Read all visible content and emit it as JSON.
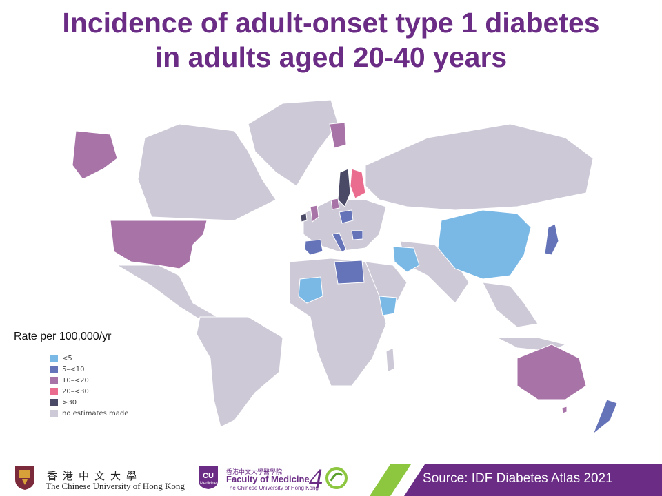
{
  "title": {
    "line1": "Incidence of adult-onset type 1 diabetes",
    "line2": "in adults aged 20-40 years"
  },
  "legend": {
    "title": "Rate per 100,000/yr",
    "items": [
      {
        "label": "<5",
        "color": "#7ab8e6"
      },
      {
        "label": "5–<10",
        "color": "#6573b8"
      },
      {
        "label": "10–<20",
        "color": "#a874a8"
      },
      {
        "label": "20–<30",
        "color": "#ea6d8f"
      },
      {
        "label": ">30",
        "color": "#4b4a66"
      },
      {
        "label": "no estimates made",
        "color": "#cdc9d7"
      }
    ]
  },
  "map_regions": {
    "lt5": [
      "China",
      "Iran",
      "Mali",
      "Ethiopia",
      "Pakistan"
    ],
    "5to10": [
      "Japan",
      "Spain",
      "Italy",
      "Libya",
      "Poland",
      "New Zealand"
    ],
    "10to20": [
      "United States",
      "Alaska",
      "Australia",
      "United Kingdom",
      "Denmark"
    ],
    "20to30": [
      "Finland"
    ],
    "gt30": [
      "Sweden",
      "Ireland"
    ]
  },
  "footer": {
    "cuhk_cn": "香港中文大學",
    "cuhk_en": "The Chinese University of Hong Kong",
    "fom_cn": "香港中文大學醫學院",
    "fom_en": "Faculty of Medicine",
    "fom_sub": "The Chinese University of Hong Kong",
    "cu_badge": "CU Medicine",
    "anniversary": "40",
    "source": "Source: IDF Diabetes Atlas 2021"
  },
  "colors": {
    "title": "#6a2c84",
    "source_bar": "#6a2c84",
    "accent_green": "#8dc63f"
  }
}
